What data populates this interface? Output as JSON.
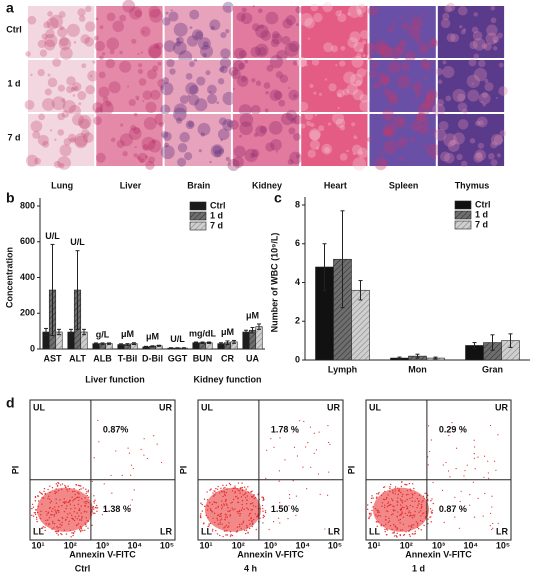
{
  "panel_labels": [
    "a",
    "b",
    "c",
    "d"
  ],
  "histology": {
    "rows": [
      "Ctrl",
      "1 d",
      "7 d"
    ],
    "columns": [
      "Lung",
      "Liver",
      "Brain",
      "Kidney",
      "Heart",
      "Spleen",
      "Thymus"
    ]
  },
  "chart_data": [
    {
      "type": "bar",
      "y_label": "Concentration",
      "categories": [
        "AST",
        "ALT",
        "ALB",
        "T-Bil",
        "D-Bil",
        "GGT",
        "BUN",
        "CR",
        "UA"
      ],
      "unit_labels": [
        "U/L",
        "U/L",
        "g/L",
        "μM",
        "μM",
        "U/L",
        "mg/dL",
        "μM",
        "μM"
      ],
      "group_labels": [
        "Liver function",
        "Kidney function"
      ],
      "ylim": [
        0,
        800
      ],
      "yticks": [
        0,
        200,
        400,
        600,
        800
      ],
      "legend": "upper right",
      "series": [
        {
          "name": "Ctrl",
          "color": "#1c1c1c",
          "hatch": false,
          "values": [
            95,
            95,
            30,
            25,
            12,
            5,
            35,
            30,
            95
          ],
          "errors": [
            20,
            15,
            4,
            4,
            3,
            2,
            4,
            5,
            10
          ]
        },
        {
          "name": "1 d",
          "color": "#6e6e6e",
          "hatch": true,
          "values": [
            330,
            330,
            30,
            25,
            15,
            5,
            35,
            35,
            105
          ],
          "errors": [
            255,
            220,
            4,
            5,
            3,
            2,
            4,
            10,
            15
          ]
        },
        {
          "name": "7 d",
          "color": "#cfcfcf",
          "hatch": true,
          "values": [
            95,
            95,
            30,
            30,
            18,
            5,
            35,
            40,
            125
          ],
          "errors": [
            15,
            15,
            4,
            5,
            3,
            2,
            4,
            8,
            15
          ]
        }
      ]
    },
    {
      "type": "bar",
      "y_label": "Number of WBC (10⁹/L)",
      "categories": [
        "Lymph",
        "Mon",
        "Gran"
      ],
      "ylim": [
        0,
        8
      ],
      "yticks": [
        0,
        2,
        4,
        6,
        8
      ],
      "legend": "upper right",
      "series": [
        {
          "name": "Ctrl",
          "color": "#111111",
          "hatch": false,
          "values": [
            4.8,
            0.1,
            0.75
          ],
          "errors": [
            1.2,
            0.05,
            0.15
          ]
        },
        {
          "name": "1 d",
          "color": "#6e6e6e",
          "hatch": true,
          "values": [
            5.2,
            0.2,
            0.9
          ],
          "errors": [
            2.5,
            0.1,
            0.4
          ]
        },
        {
          "name": "7 d",
          "color": "#cfcfcf",
          "hatch": true,
          "values": [
            3.6,
            0.1,
            1.0
          ],
          "errors": [
            0.5,
            0.05,
            0.35
          ]
        }
      ]
    }
  ],
  "flow": {
    "x_label": "Annexin V-FITC",
    "y_label": "PI",
    "quadrants": [
      "UL",
      "UR",
      "LL",
      "LR"
    ],
    "xticks": [
      "10¹",
      "10²",
      "10³",
      "10⁴",
      "10⁵"
    ],
    "plots": [
      {
        "caption": "Ctrl",
        "ur": "0.87%",
        "lr": "1.38 %"
      },
      {
        "caption": "4 h",
        "ur": "1.78 %",
        "lr": "1.50 %"
      },
      {
        "caption": "1 d",
        "ur": "0.29 %",
        "lr": "0.87 %"
      }
    ]
  }
}
